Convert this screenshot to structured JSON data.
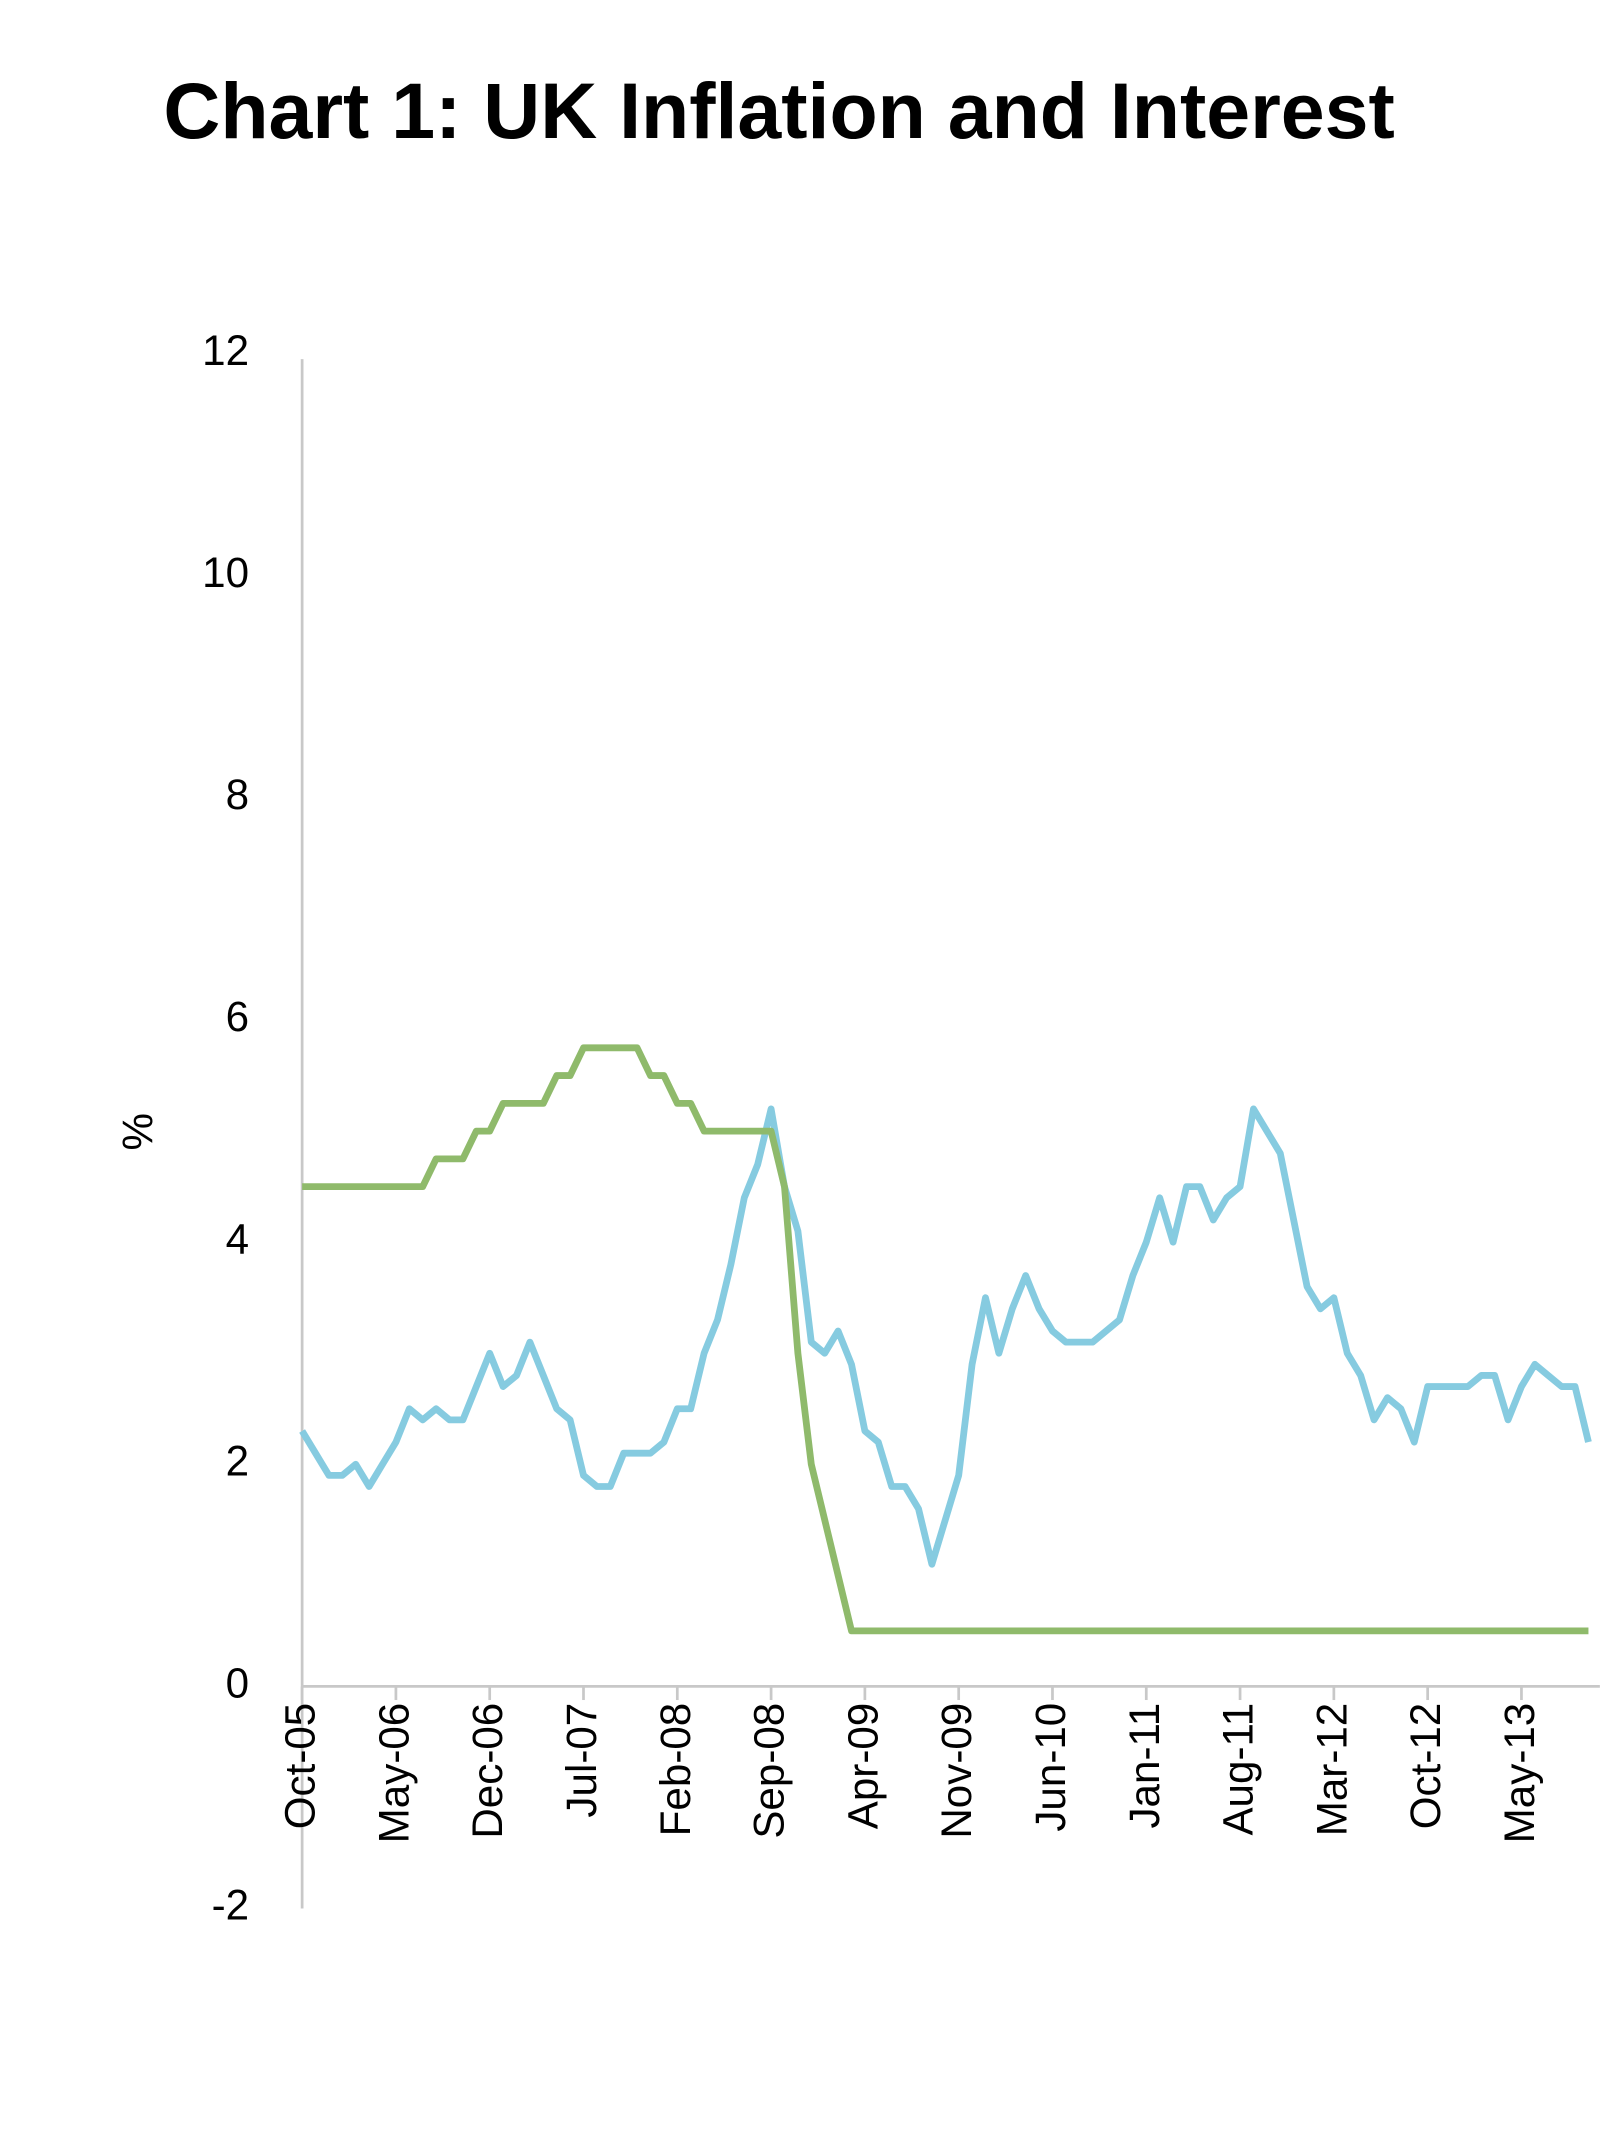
{
  "chart_data": {
    "type": "line",
    "title": "Chart 1: UK Inflation and Interest",
    "y_label": "%",
    "categories": [
      "Oct-05",
      null,
      null,
      null,
      null,
      null,
      null,
      "May-06",
      null,
      null,
      null,
      null,
      null,
      null,
      "Dec-06",
      null,
      null,
      null,
      null,
      null,
      null,
      "Jul-07",
      null,
      null,
      null,
      null,
      null,
      null,
      "Feb-08",
      null,
      null,
      null,
      null,
      null,
      null,
      "Sep-08",
      null,
      null,
      null,
      null,
      null,
      null,
      "Apr-09",
      null,
      null,
      null,
      null,
      null,
      null,
      "Nov-09",
      null,
      null,
      null,
      null,
      null,
      null,
      "Jun-10",
      null,
      null,
      null,
      null,
      null,
      null,
      "Jan-11",
      null,
      null,
      null,
      null,
      null,
      null,
      "Aug-11",
      null,
      null,
      null,
      null,
      null,
      null,
      "Mar-12",
      null,
      null,
      null,
      null,
      null,
      null,
      "Oct-12",
      null,
      null,
      null,
      null,
      null,
      null,
      "May-13",
      null,
      null,
      null,
      null,
      null
    ],
    "series": [
      {
        "color": "#86cbe0",
        "values": [
          2.3,
          2.1,
          1.9,
          1.9,
          2.0,
          1.8,
          2.0,
          2.2,
          2.5,
          2.4,
          2.5,
          2.4,
          2.4,
          2.7,
          3.0,
          2.7,
          2.8,
          3.1,
          2.8,
          2.5,
          2.4,
          1.9,
          1.8,
          1.8,
          2.1,
          2.1,
          2.1,
          2.2,
          2.5,
          2.5,
          3.0,
          3.3,
          3.8,
          4.4,
          4.7,
          5.2,
          4.5,
          4.1,
          3.1,
          3.0,
          3.2,
          2.9,
          2.3,
          2.2,
          1.8,
          1.8,
          1.6,
          1.1,
          1.5,
          1.9,
          2.9,
          3.5,
          3.0,
          3.4,
          3.7,
          3.4,
          3.2,
          3.1,
          3.1,
          3.1,
          3.2,
          3.3,
          3.7,
          4.0,
          4.4,
          4.0,
          4.5,
          4.5,
          4.2,
          4.4,
          4.5,
          5.2,
          5.0,
          4.8,
          4.2,
          3.6,
          3.4,
          3.5,
          3.0,
          2.8,
          2.4,
          2.6,
          2.5,
          2.2,
          2.7,
          2.7,
          2.7,
          2.7,
          2.8,
          2.8,
          2.4,
          2.7,
          2.9,
          2.8,
          2.7,
          2.7,
          2.2
        ]
      },
      {
        "color": "#8fba6b",
        "values": [
          4.5,
          4.5,
          4.5,
          4.5,
          4.5,
          4.5,
          4.5,
          4.5,
          4.5,
          4.5,
          4.75,
          4.75,
          4.75,
          5.0,
          5.0,
          5.25,
          5.25,
          5.25,
          5.25,
          5.5,
          5.5,
          5.75,
          5.75,
          5.75,
          5.75,
          5.75,
          5.5,
          5.5,
          5.25,
          5.25,
          5.0,
          5.0,
          5.0,
          5.0,
          5.0,
          5.0,
          4.5,
          3.0,
          2.0,
          1.5,
          1.0,
          0.5,
          0.5,
          0.5,
          0.5,
          0.5,
          0.5,
          0.5,
          0.5,
          0.5,
          0.5,
          0.5,
          0.5,
          0.5,
          0.5,
          0.5,
          0.5,
          0.5,
          0.5,
          0.5,
          0.5,
          0.5,
          0.5,
          0.5,
          0.5,
          0.5,
          0.5,
          0.5,
          0.5,
          0.5,
          0.5,
          0.5,
          0.5,
          0.5,
          0.5,
          0.5,
          0.5,
          0.5,
          0.5,
          0.5,
          0.5,
          0.5,
          0.5,
          0.5,
          0.5,
          0.5,
          0.5,
          0.5,
          0.5,
          0.5,
          0.5,
          0.5,
          0.5,
          0.5,
          0.5,
          0.5,
          0.5
        ]
      }
    ],
    "ylim": [
      -2,
      12
    ],
    "yticks": [
      -2,
      0,
      2,
      4,
      6,
      8,
      10,
      12
    ]
  }
}
